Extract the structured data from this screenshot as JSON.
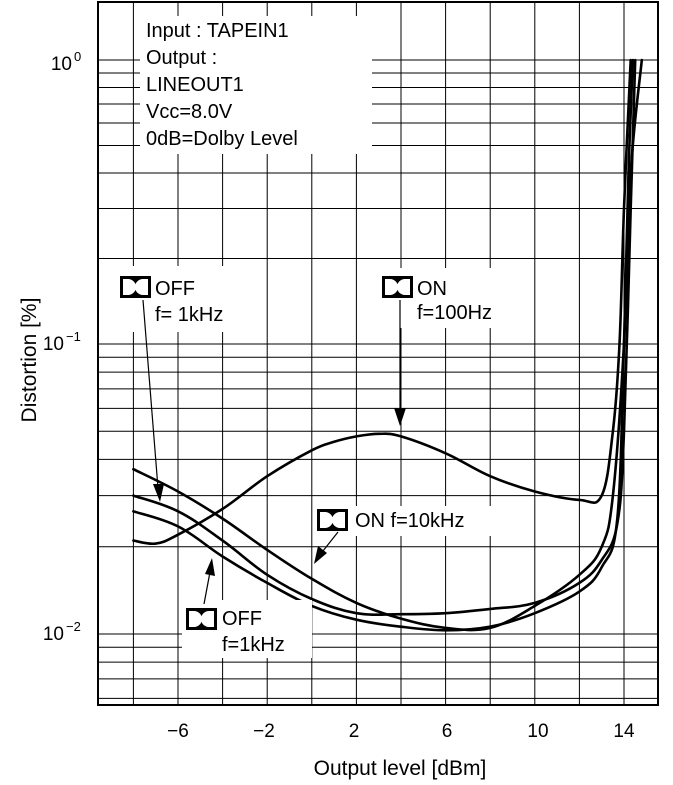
{
  "chart_data": {
    "type": "line",
    "title": "",
    "xlabel": "Output level [dBm]",
    "ylabel": "Distortion [%]",
    "x_scale": "linear",
    "y_scale": "log",
    "xlim": [
      -9,
      16
    ],
    "ylim": [
      0.0055,
      1.5
    ],
    "x_ticks": [
      -6,
      -2,
      2,
      6,
      10,
      14
    ],
    "x_tick_labels": [
      "−6",
      "−2",
      "2",
      "6",
      "10",
      "14"
    ],
    "y_ticks": [
      {
        "value": 1,
        "base": "10",
        "exp": "0"
      },
      {
        "value": 0.1,
        "base": "10",
        "exp": "−1"
      },
      {
        "value": 0.01,
        "base": "10",
        "exp": "−2"
      }
    ],
    "grid": true,
    "conditions": [
      "Input : TAPEIN1",
      "Output :",
      "LINEOUT1",
      "Vcc=8.0V",
      "0dB=Dolby Level"
    ],
    "annotations": [
      {
        "line1": "OFF",
        "line2": "f= 1kHz"
      },
      {
        "line1": "ON",
        "line2": "f=100Hz"
      },
      {
        "line1": "ON f=10kHz",
        "line2": ""
      },
      {
        "line1": "OFF",
        "line2": "f=1kHz"
      }
    ],
    "series": [
      {
        "points": [
          [
            -8,
            0.021
          ],
          [
            -7,
            0.0205
          ],
          [
            -6,
            0.022
          ],
          [
            -4,
            0.027
          ],
          [
            -2,
            0.035
          ],
          [
            0,
            0.043
          ],
          [
            1,
            0.046
          ],
          [
            2,
            0.048
          ],
          [
            3,
            0.049
          ],
          [
            4,
            0.048
          ],
          [
            6,
            0.042
          ],
          [
            8,
            0.035
          ],
          [
            10,
            0.031
          ],
          [
            12,
            0.029
          ],
          [
            13,
            0.03
          ],
          [
            13.5,
            0.05
          ],
          [
            13.8,
            0.1
          ],
          [
            14,
            0.3
          ],
          [
            14.3,
            1.0
          ]
        ]
      },
      {
        "points": [
          [
            -8,
            0.037
          ],
          [
            -6,
            0.031
          ],
          [
            -4,
            0.025
          ],
          [
            -2,
            0.0195
          ],
          [
            0,
            0.0155
          ],
          [
            2,
            0.0128
          ],
          [
            4,
            0.0113
          ],
          [
            6,
            0.0105
          ],
          [
            8,
            0.0105
          ],
          [
            10,
            0.0125
          ],
          [
            12,
            0.016
          ],
          [
            13,
            0.02
          ],
          [
            13.5,
            0.03
          ],
          [
            14,
            0.1
          ],
          [
            14.3,
            0.4
          ],
          [
            14.8,
            1.0
          ]
        ]
      },
      {
        "points": [
          [
            -8,
            0.03
          ],
          [
            -6,
            0.0265
          ],
          [
            -4,
            0.021
          ],
          [
            -2,
            0.016
          ],
          [
            0,
            0.0132
          ],
          [
            2,
            0.0118
          ],
          [
            4,
            0.0117
          ],
          [
            6,
            0.0118
          ],
          [
            8,
            0.0122
          ],
          [
            10,
            0.0128
          ],
          [
            12,
            0.015
          ],
          [
            13,
            0.018
          ],
          [
            13.7,
            0.024
          ],
          [
            14,
            0.05
          ],
          [
            14.3,
            0.3
          ],
          [
            14.5,
            1.0
          ]
        ]
      },
      {
        "points": [
          [
            -8,
            0.0265
          ],
          [
            -6,
            0.0235
          ],
          [
            -4,
            0.0185
          ],
          [
            -2,
            0.015
          ],
          [
            0,
            0.0125
          ],
          [
            2,
            0.0112
          ],
          [
            4,
            0.0106
          ],
          [
            6,
            0.0103
          ],
          [
            8,
            0.0106
          ],
          [
            10,
            0.0118
          ],
          [
            12,
            0.014
          ],
          [
            13,
            0.017
          ],
          [
            13.7,
            0.025
          ],
          [
            14,
            0.1
          ],
          [
            14.2,
            0.4
          ],
          [
            14.4,
            1.0
          ]
        ]
      }
    ]
  }
}
